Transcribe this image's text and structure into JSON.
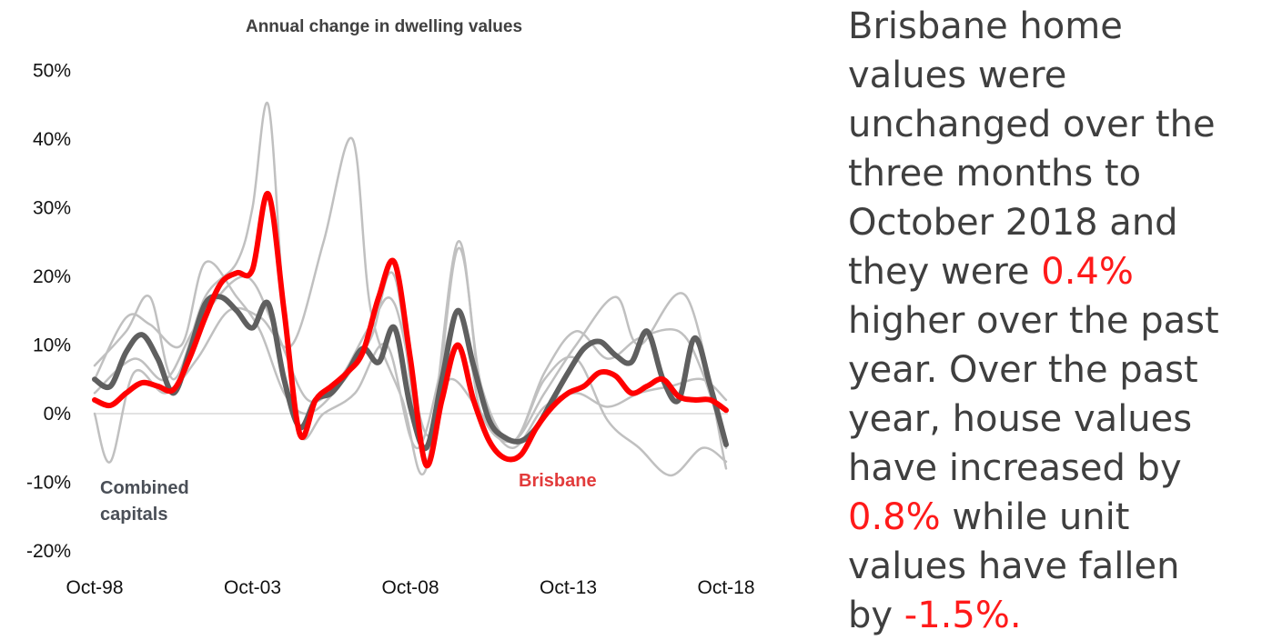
{
  "chart_data": {
    "type": "line",
    "title": "Annual change in dwelling values",
    "xlabel": "",
    "ylabel": "",
    "x_ticks": [
      "Oct-98",
      "Oct-03",
      "Oct-08",
      "Oct-13",
      "Oct-18"
    ],
    "x_range": [
      "1998-10",
      "2018-10"
    ],
    "y_ticks": [
      "50%",
      "40%",
      "30%",
      "20%",
      "10%",
      "0%",
      "-10%",
      "-20%"
    ],
    "ylim": [
      -20,
      50
    ],
    "y_unit": "%",
    "grid": false,
    "legend": "none (series labelled directly on chart)",
    "series": [
      {
        "name": "",
        "role": "other capital",
        "color": "#c0c0c0",
        "x": [
          "1998-10",
          "1999-10",
          "2000-07",
          "2001-04",
          "2002-04",
          "2003-04",
          "2003-10",
          "2004-04",
          "2004-10",
          "2005-04",
          "2006-01",
          "2007-01",
          "2008-01",
          "2009-01",
          "2010-04",
          "2011-01",
          "2012-01",
          "2013-01",
          "2014-01",
          "2015-04",
          "2016-01",
          "2017-07",
          "2018-10"
        ],
        "y": [
          7,
          12,
          17,
          5,
          17,
          22,
          30,
          45,
          15,
          -3,
          0,
          3,
          10,
          -5,
          15,
          0,
          -4,
          3,
          10,
          17,
          10,
          17,
          -8
        ]
      },
      {
        "name": "",
        "role": "other capital",
        "color": "#c0c0c0",
        "x": [
          "1998-10",
          "1999-04",
          "2000-01",
          "2001-01",
          "2002-01",
          "2003-01",
          "2004-01",
          "2005-01",
          "2006-01",
          "2006-12",
          "2007-07",
          "2008-07",
          "2009-04",
          "2010-04",
          "2011-01",
          "2012-01",
          "2013-01",
          "2014-01",
          "2015-01",
          "2016-01",
          "2017-01",
          "2018-01",
          "2018-10"
        ],
        "y": [
          0,
          -7,
          6,
          3,
          8,
          15,
          14,
          10,
          25,
          40,
          15,
          2,
          -8,
          25,
          3,
          -4,
          5,
          8,
          -1,
          -5,
          -9,
          -5,
          -7
        ]
      },
      {
        "name": "",
        "role": "other capital",
        "color": "#c0c0c0",
        "x": [
          "1998-10",
          "1999-10",
          "2000-07",
          "2001-07",
          "2002-04",
          "2003-04",
          "2004-01",
          "2004-10",
          "2005-07",
          "2006-07",
          "2007-07",
          "2008-04",
          "2009-04",
          "2010-04",
          "2011-01",
          "2012-01",
          "2013-01",
          "2014-01",
          "2015-01",
          "2016-01",
          "2017-04",
          "2018-01",
          "2018-10"
        ],
        "y": [
          5,
          14,
          13,
          10,
          22,
          17,
          12,
          3,
          0,
          4,
          11,
          20,
          -7,
          24,
          4,
          -4,
          6,
          12,
          8,
          11,
          12,
          6,
          -5
        ]
      },
      {
        "name": "",
        "role": "other capital",
        "color": "#c0c0c0",
        "x": [
          "1998-10",
          "2000-01",
          "2001-01",
          "2002-01",
          "2003-07",
          "2004-07",
          "2005-07",
          "2006-07",
          "2007-07",
          "2008-04",
          "2009-04",
          "2010-01",
          "2011-01",
          "2012-01",
          "2013-01",
          "2014-01",
          "2015-01",
          "2016-01",
          "2017-01",
          "2018-01",
          "2018-10"
        ],
        "y": [
          3,
          8,
          5,
          13,
          20,
          12,
          2,
          5,
          13,
          16,
          -3,
          5,
          0,
          -5,
          1,
          3,
          1,
          3,
          4,
          5,
          2
        ]
      },
      {
        "name": "Combined capitals",
        "color": "#5f5f5f",
        "x": [
          "1998-10",
          "1999-04",
          "1999-10",
          "2000-04",
          "2000-10",
          "2001-04",
          "2001-10",
          "2002-04",
          "2002-10",
          "2003-04",
          "2003-10",
          "2004-04",
          "2004-10",
          "2005-04",
          "2005-10",
          "2006-04",
          "2006-10",
          "2007-04",
          "2007-10",
          "2008-04",
          "2008-10",
          "2009-04",
          "2009-10",
          "2010-04",
          "2010-10",
          "2011-04",
          "2011-10",
          "2012-04",
          "2012-10",
          "2013-04",
          "2013-10",
          "2014-04",
          "2014-10",
          "2015-04",
          "2015-10",
          "2016-04",
          "2016-10",
          "2017-04",
          "2017-10",
          "2018-04",
          "2018-10"
        ],
        "y": [
          5,
          4,
          9,
          11.5,
          8,
          3,
          9,
          16,
          17,
          15,
          12.5,
          16,
          5,
          -2,
          2,
          3,
          6,
          9.5,
          7.5,
          12.5,
          1,
          -5,
          5,
          15,
          7,
          -1,
          -3.5,
          -4,
          -2,
          2,
          6,
          9.5,
          10.5,
          8.5,
          7.5,
          12,
          5,
          2,
          11,
          4,
          -4.5
        ]
      },
      {
        "name": "Brisbane",
        "color": "#ff0000",
        "x": [
          "1998-10",
          "1999-04",
          "1999-10",
          "2000-04",
          "2000-10",
          "2001-04",
          "2001-10",
          "2002-04",
          "2002-10",
          "2003-04",
          "2003-10",
          "2004-04",
          "2004-10",
          "2005-04",
          "2005-10",
          "2006-04",
          "2006-10",
          "2007-04",
          "2007-10",
          "2008-04",
          "2008-10",
          "2009-04",
          "2009-10",
          "2010-04",
          "2010-10",
          "2011-04",
          "2011-10",
          "2012-04",
          "2012-10",
          "2013-04",
          "2013-10",
          "2014-04",
          "2014-10",
          "2015-04",
          "2015-10",
          "2016-04",
          "2016-10",
          "2017-04",
          "2017-10",
          "2018-04",
          "2018-10"
        ],
        "y": [
          2,
          1.2,
          3,
          4.5,
          4,
          3.5,
          8,
          14,
          19,
          20.5,
          21,
          32,
          15,
          -3,
          2,
          4,
          6,
          9,
          17,
          22,
          8,
          -7.5,
          2,
          10,
          2,
          -4,
          -6.5,
          -6,
          -2,
          1,
          3,
          4,
          6,
          5.5,
          3,
          4,
          5,
          2.5,
          2,
          2,
          0.5
        ]
      }
    ],
    "annotations": {
      "combined_line1": "Combined",
      "combined_line2": "capitals",
      "brisbane": "Brisbane"
    }
  },
  "narrative": {
    "lines": [
      {
        "text": "Brisbane home"
      },
      {
        "text": "values were"
      },
      {
        "text": "unchanged over the"
      },
      {
        "text": "three months to"
      },
      {
        "text": "October 2018 and"
      },
      {
        "text": "they were ",
        "red": "0.4%"
      },
      {
        "text": "higher over the past"
      },
      {
        "text": "year. Over the past"
      },
      {
        "text": "year, house values"
      },
      {
        "text": "have increased by"
      },
      {
        "red": "0.8%",
        "after": " while unit"
      },
      {
        "text": "values have fallen"
      },
      {
        "text": "by ",
        "red": "-1.5%."
      }
    ],
    "highlight_color": "#ff1a1a"
  }
}
